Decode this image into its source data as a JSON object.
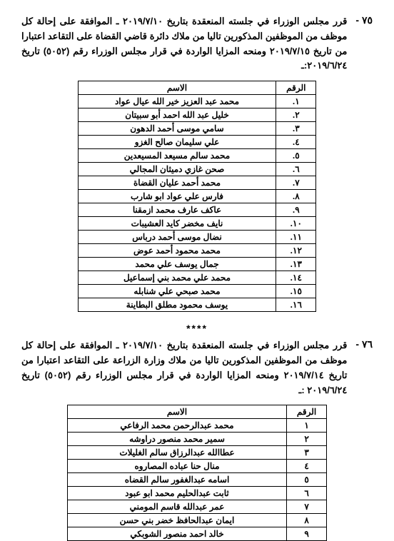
{
  "section1": {
    "number": "٧٥ -",
    "text": "قرر مجلس الوزراء في جلسته المنعقدة بتاريخ ٢٠١٩/٧/١٠ ـ الموافقة على إحالة كل موظف من الموظفين المذكورين تاليا من ملاك دائرة قاضي القضاة على التقاعد اعتبارا من تاريخ ٢٠١٩/٧/١٥ ومنحه المزايا الواردة في قرار مجلس الوزراء رقم (٥٠٥٢) تاريخ ٢٠١٩/٦/٢٤:ـ",
    "headers": {
      "num": "الرقم",
      "name": "الاسم"
    },
    "rows": [
      {
        "num": "١.",
        "name": "محمد عبد العزيز خير الله عيال عواد"
      },
      {
        "num": "٢.",
        "name": "خليل عبد الله احمد أبو سبيتان"
      },
      {
        "num": "٣.",
        "name": "سامي موسى أحمد الدهون"
      },
      {
        "num": "٤.",
        "name": "علي سليمان صالح الغزو"
      },
      {
        "num": "٥.",
        "name": "محمد سالم مسيعد المسيعدين"
      },
      {
        "num": "٦.",
        "name": "صحن غازي دميثان المجالي"
      },
      {
        "num": "٧.",
        "name": "محمد أحمد عليان القضاة"
      },
      {
        "num": "٨.",
        "name": "فارس علي عواد ابو شارب"
      },
      {
        "num": "٩.",
        "name": "عاكف عارف محمد ازمقنا"
      },
      {
        "num": "١٠.",
        "name": "نايف مخضر كايد العشيبات"
      },
      {
        "num": "١١.",
        "name": "نضال موسى أحمد درباس"
      },
      {
        "num": "١٢.",
        "name": "محمد محمود أحمد عوض"
      },
      {
        "num": "١٣.",
        "name": "جمال يوسف علي محمد"
      },
      {
        "num": "١٤.",
        "name": "محمد علي محمد بني إسماعيل"
      },
      {
        "num": "١٥.",
        "name": "محمد صبحي علي شنابله"
      },
      {
        "num": "١٦.",
        "name": "يوسف محمود مطلق البطاينة"
      }
    ]
  },
  "separator": "****",
  "section2": {
    "number": "٧٦ -",
    "text": "قرر مجلس الوزراء في جلسته المنعقدة بتاريخ ٢٠١٩/٧/١٠ ـ الموافقة على إحالة كل موظف من الموظفين المذكورين تاليا من ملاك وزارة الزراعة على التقاعد اعتبارا من تاريخ ٢٠١٩/٧/١٤ ومنحه المزايا الواردة في قرار مجلس الوزراء رقم (٥٠٥٢) تاريخ ٢٠١٩/٦/٢٤ :ـ",
    "headers": {
      "num": "الرقم",
      "name": "الاسم"
    },
    "rows": [
      {
        "num": "١",
        "name": "محمد عبدالرحمن محمد الرفاعي"
      },
      {
        "num": "٢",
        "name": "سمير محمد منصور دراوشه"
      },
      {
        "num": "٣",
        "name": "عطاالله عبدالرزاق سالم الغليلات"
      },
      {
        "num": "٤",
        "name": "منال حنا عباده المصاروه"
      },
      {
        "num": "٥",
        "name": "اسامه عبدالغفور سالم القضاه"
      },
      {
        "num": "٦",
        "name": "ثابت عبدالحليم محمد ابو عبود"
      },
      {
        "num": "٧",
        "name": "عمر عبدالله قاسم المومني"
      },
      {
        "num": "٨",
        "name": "ايمان عبدالحافظ خضر بني حسن"
      },
      {
        "num": "٩",
        "name": "خالد احمد منصور الشوبكي"
      }
    ]
  }
}
